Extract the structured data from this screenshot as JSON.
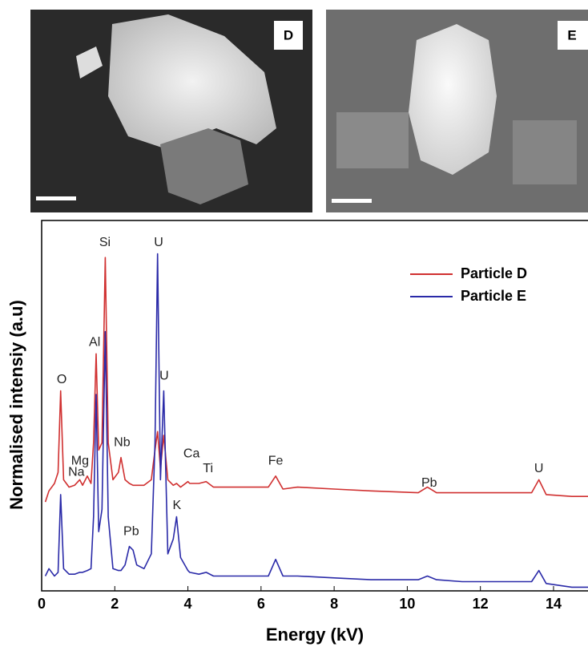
{
  "panels": [
    {
      "label": "D"
    },
    {
      "label": "E"
    }
  ],
  "chart_data": {
    "type": "line",
    "xlabel": "Energy (kV)",
    "ylabel": "Normalised intensiy (a.u)",
    "x": [
      0.1,
      0.2,
      0.35,
      0.45,
      0.52,
      0.6,
      0.75,
      0.9,
      1.04,
      1.12,
      1.25,
      1.35,
      1.42,
      1.49,
      1.56,
      1.65,
      1.74,
      1.82,
      1.95,
      2.1,
      2.17,
      2.28,
      2.4,
      2.5,
      2.6,
      2.8,
      3.0,
      3.1,
      3.17,
      3.25,
      3.34,
      3.45,
      3.6,
      3.69,
      3.8,
      4.0,
      4.05,
      4.3,
      4.5,
      4.7,
      5.0,
      5.5,
      6.2,
      6.4,
      6.6,
      7.0,
      8.0,
      9.0,
      10.3,
      10.55,
      10.8,
      11.5,
      12.5,
      13.4,
      13.6,
      13.8,
      14.5,
      15.0
    ],
    "series": [
      {
        "name": "Particle D",
        "color": "#d03030",
        "values": [
          24,
          27,
          29,
          32,
          54,
          30,
          28,
          28.5,
          30,
          28.5,
          31,
          29,
          40,
          64,
          38,
          40,
          90,
          40,
          30,
          32,
          36,
          30,
          29,
          28.5,
          28.5,
          28.5,
          30,
          38,
          43,
          33,
          42,
          30,
          28.5,
          29,
          28,
          29.5,
          29,
          29,
          29.5,
          28,
          28,
          28,
          28,
          31,
          27.5,
          28,
          27.5,
          27,
          26.5,
          28,
          26.5,
          26.5,
          26.5,
          26.5,
          30,
          26,
          25.5,
          25.5
        ]
      },
      {
        "name": "Particle E",
        "color": "#2a2aa8",
        "values": [
          4,
          6,
          4,
          5,
          26,
          6,
          4.5,
          4.5,
          5,
          5,
          5.5,
          6,
          20,
          53,
          16,
          22,
          70,
          20,
          6,
          5.5,
          5.5,
          7,
          12,
          11,
          7,
          6,
          10,
          40,
          91,
          30,
          54,
          10,
          14,
          20,
          9,
          5.5,
          5,
          4.5,
          5,
          4,
          4,
          4,
          4,
          8.5,
          4,
          4,
          3.5,
          3,
          3,
          4,
          3,
          2.5,
          2.5,
          2.5,
          5.5,
          2,
          1,
          1
        ]
      }
    ],
    "annotations": [
      {
        "text": "O",
        "x": 0.55,
        "y": 57
      },
      {
        "text": "Na",
        "x": 0.95,
        "y": 32
      },
      {
        "text": "Mg",
        "x": 1.05,
        "y": 35
      },
      {
        "text": "Al",
        "x": 1.45,
        "y": 67
      },
      {
        "text": "Si",
        "x": 1.73,
        "y": 94
      },
      {
        "text": "Nb",
        "x": 2.2,
        "y": 40
      },
      {
        "text": "U",
        "x": 3.2,
        "y": 94
      },
      {
        "text": "U",
        "x": 3.35,
        "y": 58
      },
      {
        "text": "Ca",
        "x": 4.1,
        "y": 37
      },
      {
        "text": "Ti",
        "x": 4.55,
        "y": 33
      },
      {
        "text": "Fe",
        "x": 6.4,
        "y": 35
      },
      {
        "text": "Pb",
        "x": 10.6,
        "y": 29
      },
      {
        "text": "U",
        "x": 13.6,
        "y": 33
      },
      {
        "text": "Pb",
        "x": 2.45,
        "y": 16
      },
      {
        "text": "K",
        "x": 3.7,
        "y": 23
      }
    ],
    "xlim": [
      0,
      15
    ],
    "ylim": [
      0,
      100
    ],
    "xticks": [
      0,
      2,
      4,
      6,
      8,
      10,
      12,
      14
    ],
    "legend": "upper right"
  }
}
